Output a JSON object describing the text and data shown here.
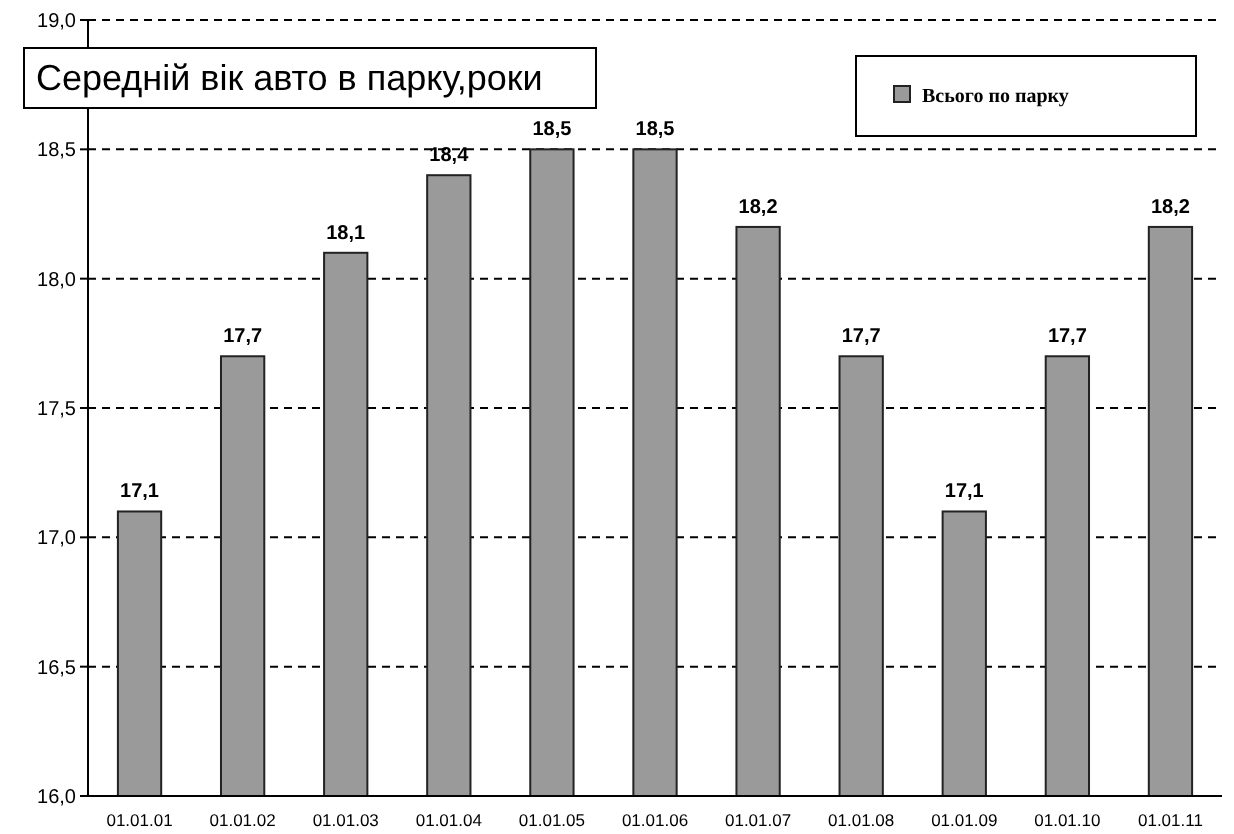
{
  "chart_data": {
    "type": "bar",
    "title": "Середній вік авто в парку,роки",
    "categories": [
      "01.01.01",
      "01.01.02",
      "01.01.03",
      "01.01.04",
      "01.01.05",
      "01.01.06",
      "01.01.07",
      "01.01.08",
      "01.01.09",
      "01.01.10",
      "01.01.11"
    ],
    "series": [
      {
        "name": "Всього по парку",
        "color": "#9a9a9a",
        "values": [
          17.1,
          17.7,
          18.1,
          18.4,
          18.5,
          18.5,
          18.2,
          17.7,
          17.1,
          17.7,
          18.2
        ]
      }
    ],
    "value_labels": [
      "17,1",
      "17,7",
      "18,1",
      "18,4",
      "18,5",
      "18,5",
      "18,2",
      "17,7",
      "17,1",
      "17,7",
      "18,2"
    ],
    "ylim": [
      16,
      19
    ],
    "yticks": [
      {
        "value": 16,
        "label": "16,0"
      },
      {
        "value": 16.5,
        "label": "16,5"
      },
      {
        "value": 17,
        "label": "17,0"
      },
      {
        "value": 17.5,
        "label": "17,5"
      },
      {
        "value": 18,
        "label": "18,0"
      },
      {
        "value": 18.5,
        "label": "18,5"
      },
      {
        "value": 19,
        "label": "19,0"
      }
    ],
    "grid": "y",
    "legend": "top right"
  }
}
